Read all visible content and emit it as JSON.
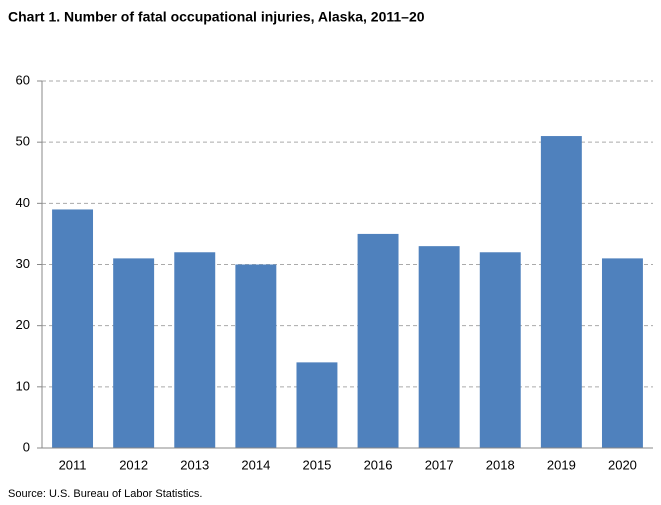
{
  "chart_data": {
    "type": "bar",
    "title": "Chart 1. Number of fatal occupational injuries, Alaska, 2011–20",
    "source": "Source: U.S. Bureau of Labor Statistics.",
    "categories": [
      "2011",
      "2012",
      "2013",
      "2014",
      "2015",
      "2016",
      "2017",
      "2018",
      "2019",
      "2020"
    ],
    "values": [
      39,
      31,
      32,
      30,
      14,
      35,
      33,
      32,
      51,
      31
    ],
    "color": "#4f81bd",
    "ylim": [
      0,
      60
    ],
    "yticks": [
      0,
      10,
      20,
      30,
      40,
      50,
      60
    ],
    "grid": true
  }
}
